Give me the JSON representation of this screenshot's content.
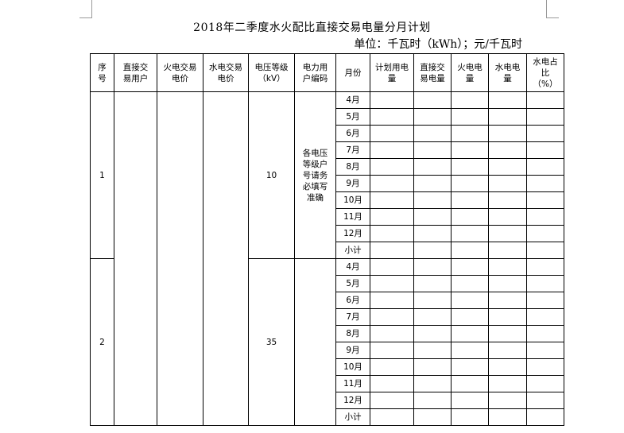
{
  "document": {
    "title": "2018年二季度水火配比直接交易电量分月计划",
    "unit": "单位：千瓦时（kWh）；元/千瓦时"
  },
  "table": {
    "headers": [
      "序号",
      "直接交易用户",
      "火电交易电价",
      "水电交易电价",
      "电压等级（kV）",
      "电力用户编码",
      "月份",
      "计划用电量",
      "直接交易电量",
      "火电电量",
      "水电电量",
      "水电占比（%）"
    ],
    "months": [
      "4月",
      "5月",
      "6月",
      "7月",
      "8月",
      "9月",
      "10月",
      "11月",
      "12月",
      "小计"
    ],
    "groups": [
      {
        "no": "1",
        "voltage": "10",
        "code_note": "各电压等级户号请务必填写准确"
      },
      {
        "no": "2",
        "voltage": "35",
        "code_note": ""
      }
    ]
  }
}
